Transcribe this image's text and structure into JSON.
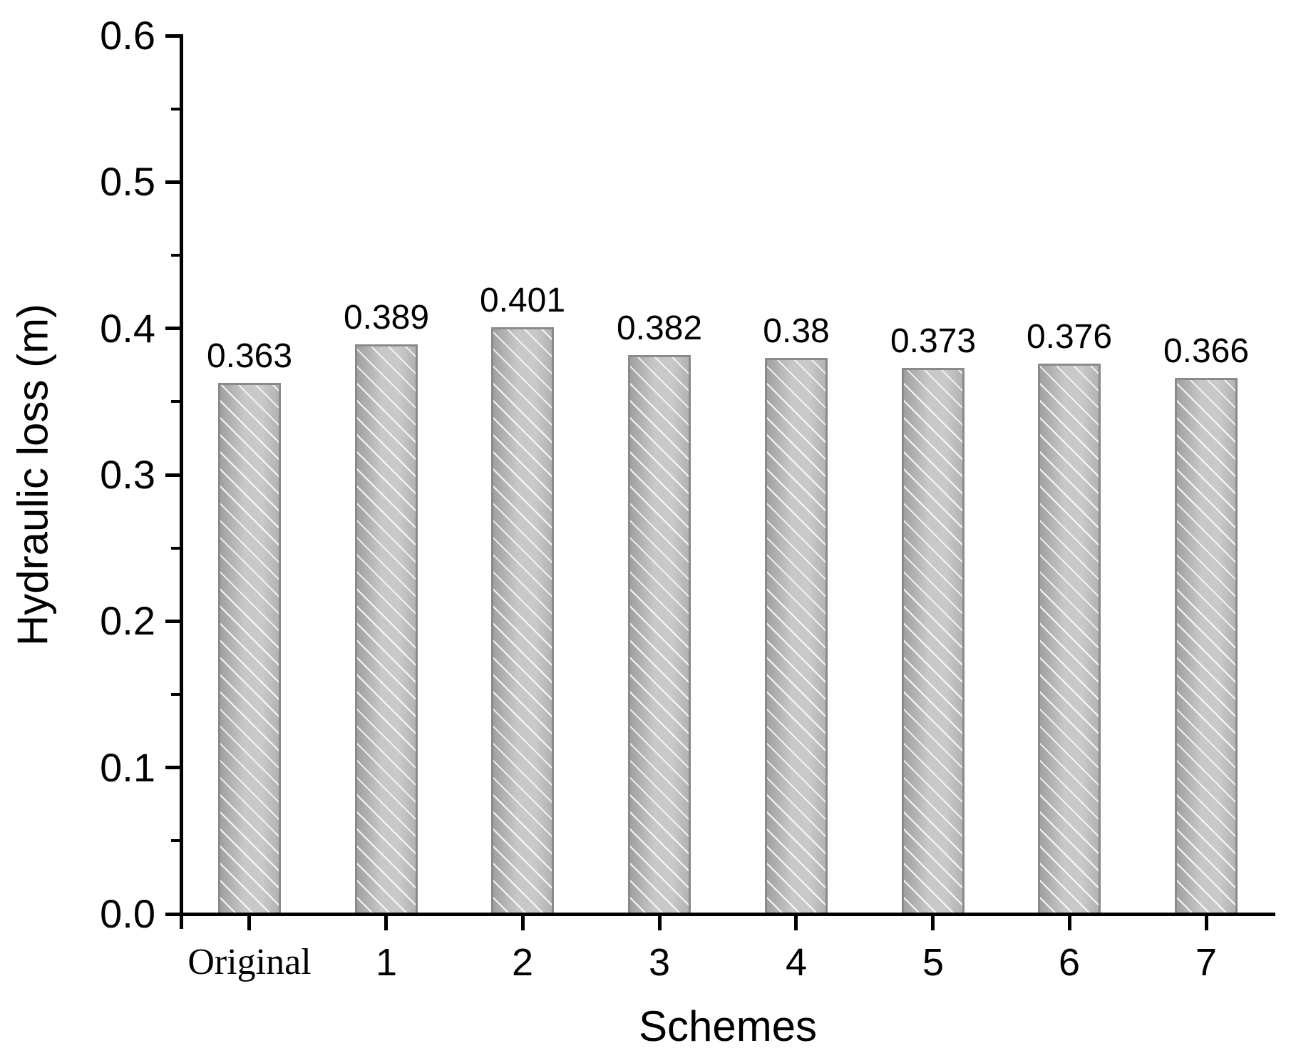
{
  "chart_data": {
    "type": "bar",
    "title": "",
    "xlabel": "Schemes",
    "ylabel": "Hydraulic loss (m)",
    "categories": [
      "Original",
      "1",
      "2",
      "3",
      "4",
      "5",
      "6",
      "7"
    ],
    "values": [
      0.363,
      0.389,
      0.401,
      0.382,
      0.38,
      0.373,
      0.376,
      0.366
    ],
    "value_labels": [
      "0.363",
      "0.389",
      "0.401",
      "0.382",
      "0.38",
      "0.373",
      "0.376",
      "0.366"
    ],
    "ylim": [
      0,
      0.6
    ],
    "ytick_labels": [
      "0.0",
      "0.1",
      "0.2",
      "0.3",
      "0.4",
      "0.5",
      "0.6"
    ],
    "ytick_values": [
      0,
      0.1,
      0.2,
      0.3,
      0.4,
      0.5,
      0.6
    ],
    "minor_tick_values": [
      0.05,
      0.15,
      0.25,
      0.35,
      0.45,
      0.55
    ],
    "grid": false,
    "legend": null,
    "bar_fill_color": "#c0c0c0",
    "bar_border_color": "#8a8a8a",
    "bar_hatch": "white-diagonal-lines",
    "axis_color": "#000000",
    "label_color": "#000000",
    "background_color": "#ffffff"
  }
}
